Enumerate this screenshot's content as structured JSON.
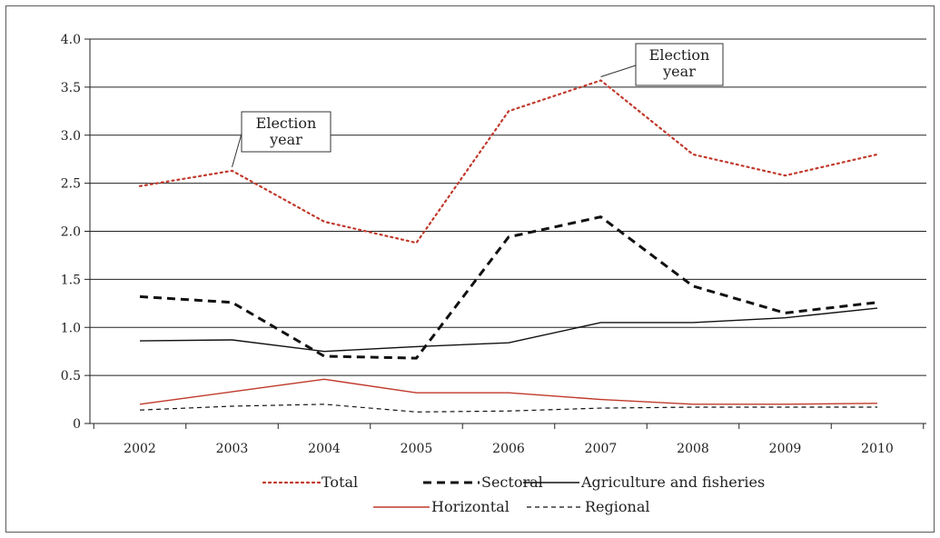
{
  "chart_data": {
    "type": "line",
    "title": "",
    "xlabel": "",
    "ylabel": "",
    "categories": [
      "2002",
      "2003",
      "2004",
      "2005",
      "2006",
      "2007",
      "2008",
      "2009",
      "2010"
    ],
    "ylim": [
      0,
      4.0
    ],
    "yticks": [
      {
        "value": 0,
        "label": "0"
      },
      {
        "value": 0.5,
        "label": "0.5"
      },
      {
        "value": 1.0,
        "label": "1.0"
      },
      {
        "value": 1.5,
        "label": "1.5"
      },
      {
        "value": 2.0,
        "label": "2.0"
      },
      {
        "value": 2.5,
        "label": "2.5"
      },
      {
        "value": 3.0,
        "label": "3.0"
      },
      {
        "value": 3.5,
        "label": "3.5"
      },
      {
        "value": 4.0,
        "label": "4.0"
      }
    ],
    "grid": true,
    "legend_placement": "bottom",
    "series": [
      {
        "name": "Total",
        "color": "#c0392b",
        "style": "dotted",
        "values": [
          2.47,
          2.63,
          2.1,
          1.88,
          3.25,
          3.57,
          2.8,
          2.58,
          2.8
        ]
      },
      {
        "name": "Sectoral",
        "color": "#111111",
        "style": "dashed-bold",
        "values": [
          1.32,
          1.26,
          0.7,
          0.68,
          1.94,
          2.15,
          1.43,
          1.15,
          1.26
        ]
      },
      {
        "name": "Agriculture and fisheries",
        "color": "#111111",
        "style": "solid",
        "values": [
          0.86,
          0.87,
          0.75,
          0.8,
          0.84,
          1.05,
          1.05,
          1.1,
          1.2
        ]
      },
      {
        "name": "Horizontal",
        "color": "#c0392b",
        "style": "solid",
        "values": [
          0.2,
          0.33,
          0.46,
          0.32,
          0.32,
          0.25,
          0.2,
          0.2,
          0.21
        ]
      },
      {
        "name": "Regional",
        "color": "#111111",
        "style": "dashed-thin",
        "values": [
          0.14,
          0.18,
          0.2,
          0.12,
          0.13,
          0.16,
          0.17,
          0.17,
          0.17
        ]
      }
    ],
    "annotations": [
      {
        "text_lines": [
          "Election",
          "year"
        ],
        "category": "2003",
        "value": 2.63
      },
      {
        "text_lines": [
          "Election",
          "year"
        ],
        "category": "2007",
        "value": 3.57
      }
    ]
  }
}
